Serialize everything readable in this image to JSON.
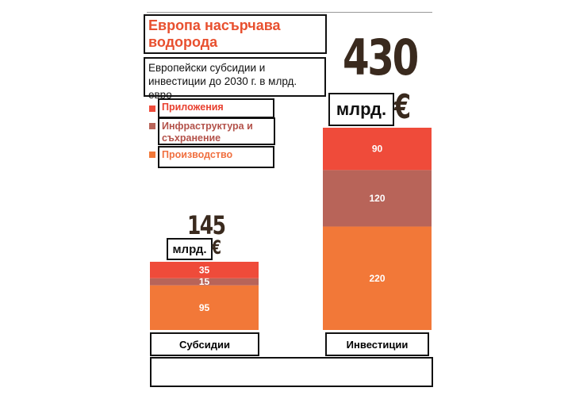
{
  "header": {
    "title": "Европа насърчава водорода",
    "subtitle": "Европейски субсидии и инвестиции до 2030 г. в млрд. евро"
  },
  "legend": {
    "items": [
      {
        "label": "Приложения",
        "color": "#ef4b3a"
      },
      {
        "label": "Инфраструктура и съхранение",
        "color": "#b86459"
      },
      {
        "label": "Производство",
        "color": "#f27838"
      }
    ]
  },
  "totals": {
    "subsidies": {
      "number": "145",
      "unit": "млрд.",
      "currency": "€"
    },
    "investments": {
      "number": "430",
      "unit": "млрд.",
      "currency": "€"
    }
  },
  "colors": {
    "applications": "#ef4b3a",
    "infrastructure": "#b86459",
    "production": "#f27838",
    "dark": "#3a2a1e",
    "title": "#e8502f"
  },
  "chart_data": {
    "type": "bar",
    "stacked": true,
    "categories": [
      "Субсидии",
      "Инвестиции"
    ],
    "series": [
      {
        "name": "Производство",
        "values": [
          95,
          220
        ]
      },
      {
        "name": "Инфраструктура и съхранение",
        "values": [
          15,
          120
        ]
      },
      {
        "name": "Приложения",
        "values": [
          35,
          90
        ]
      }
    ],
    "totals": [
      145,
      430
    ],
    "title": "Европа насърчава водорода",
    "ylabel": "",
    "xlabel": "",
    "ylim": [
      0,
      430
    ],
    "grid": false,
    "legend_position": "top-left"
  },
  "footer": {
    "note": ""
  }
}
